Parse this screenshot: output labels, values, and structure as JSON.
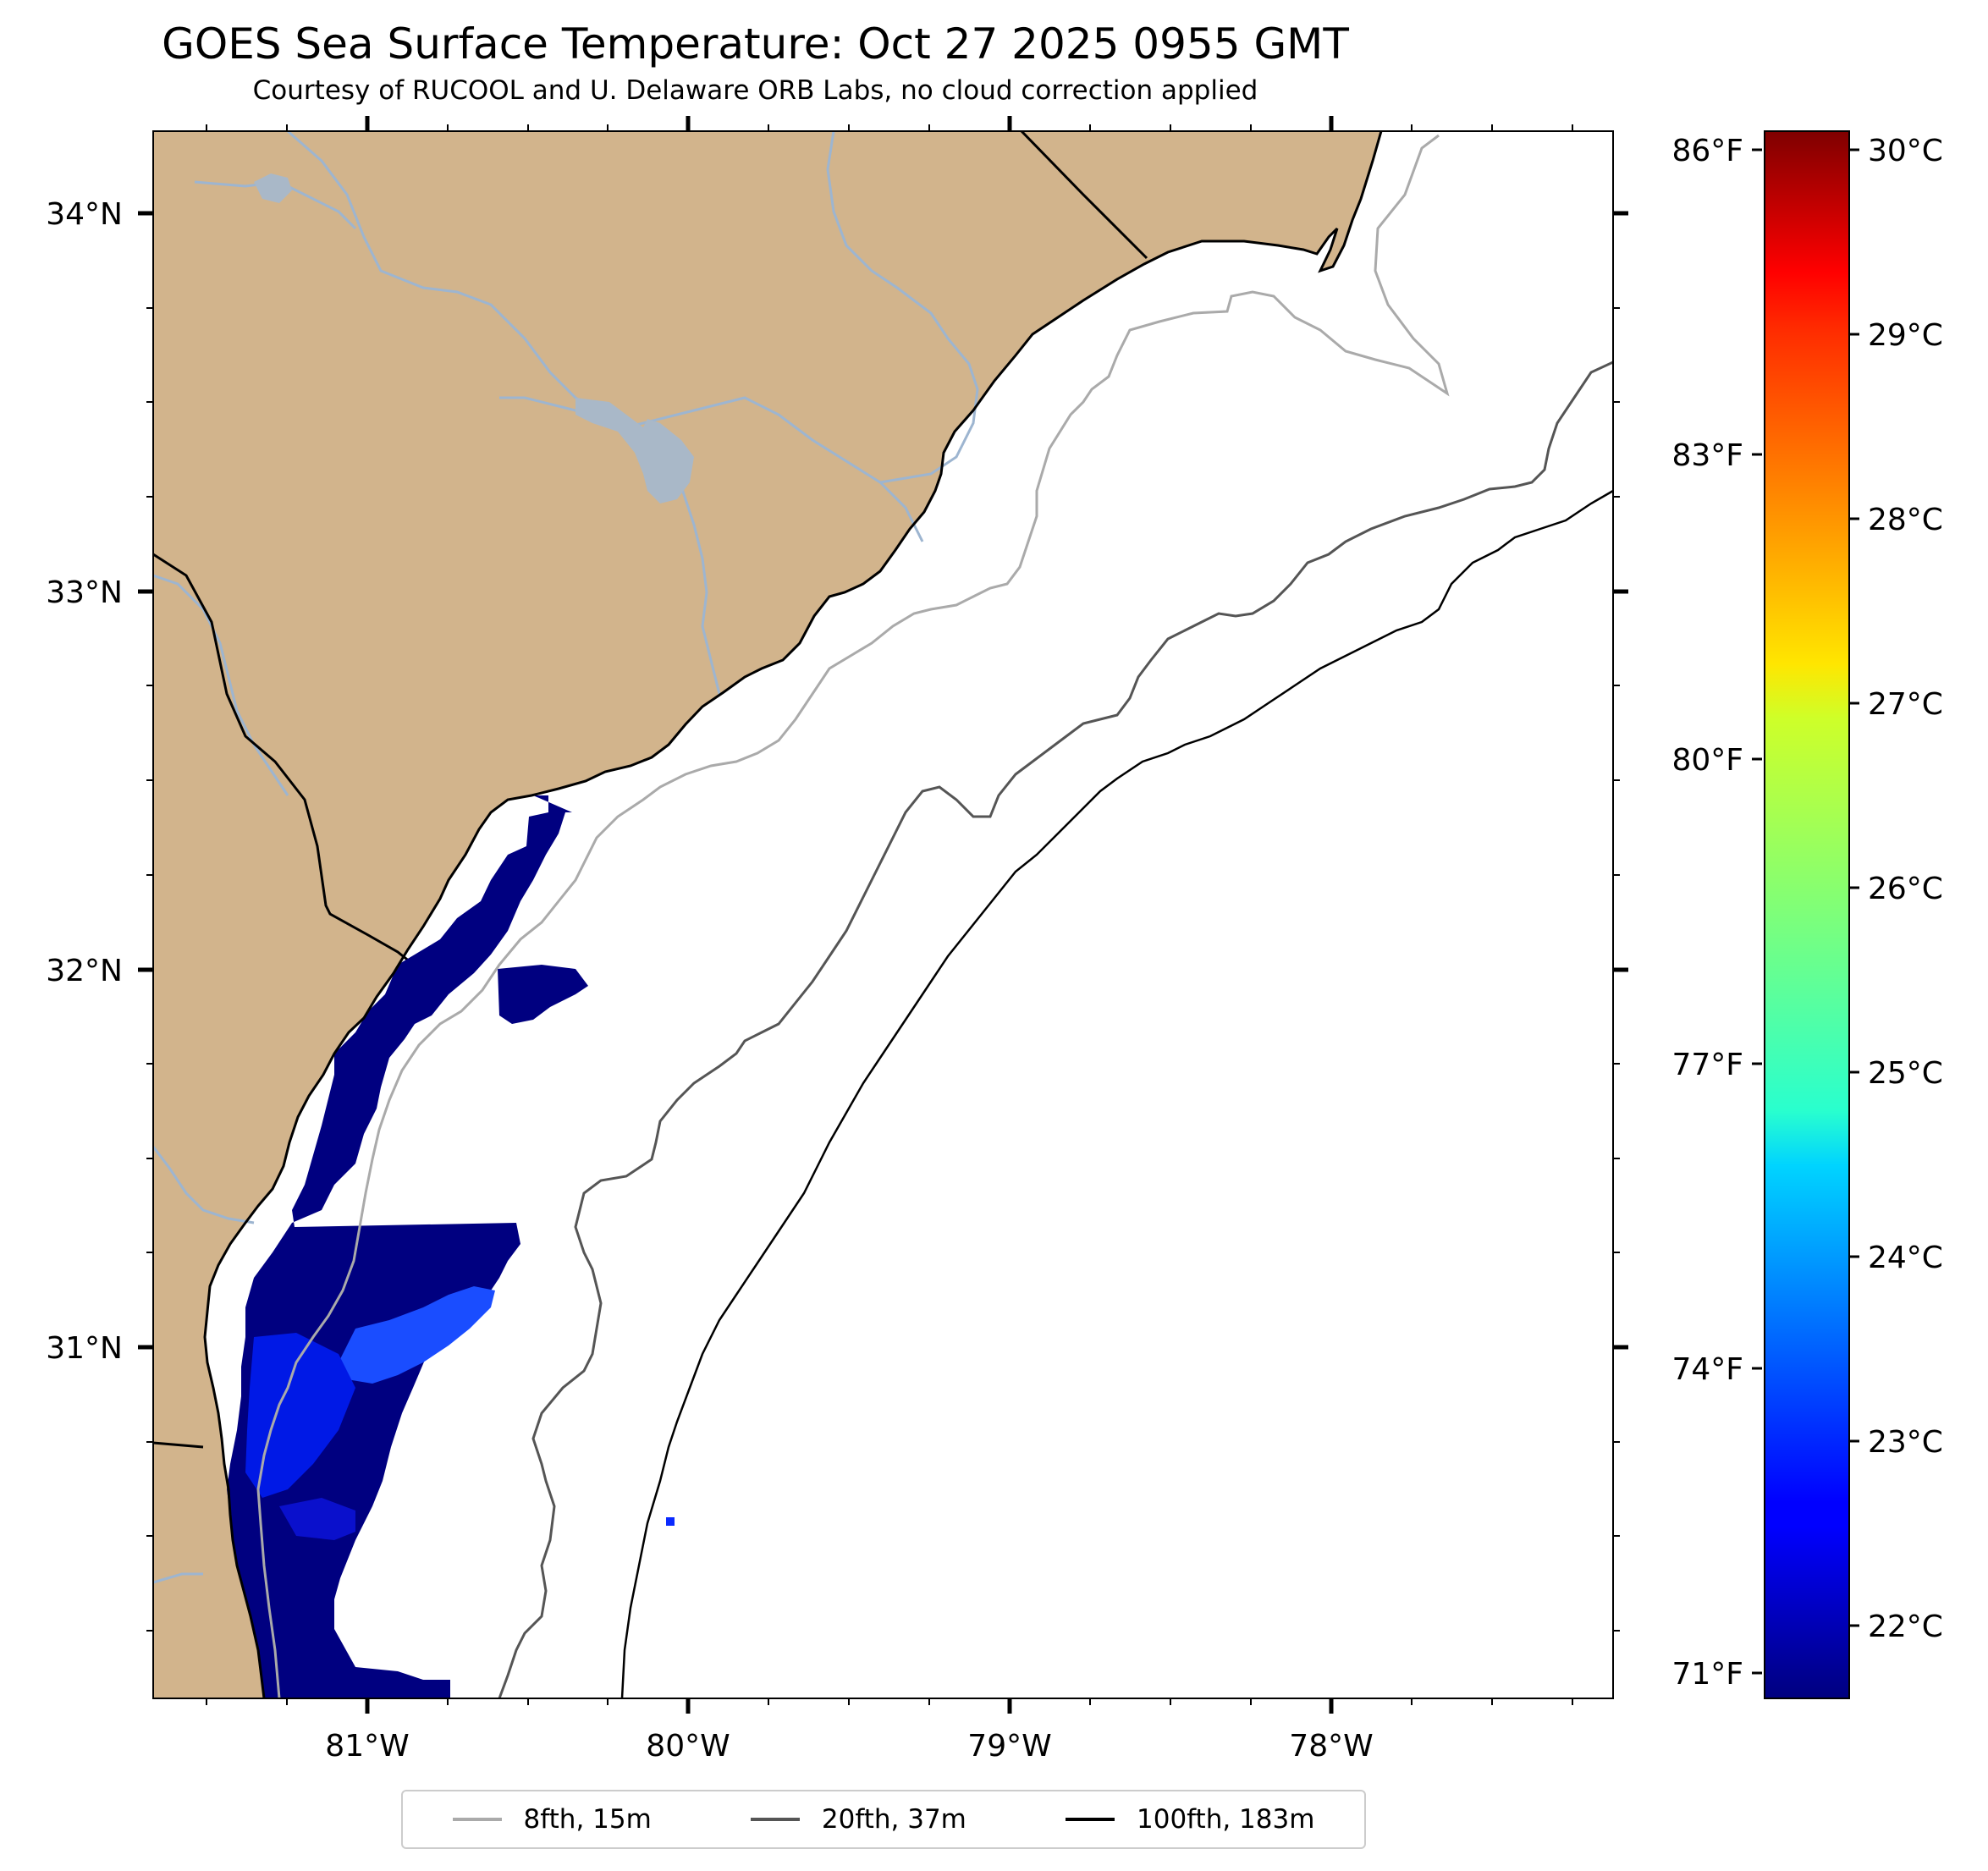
{
  "title": "GOES Sea Surface Temperature: Oct 27 2025 0955 GMT",
  "subtitle": "Courtesy of RUCOOL and U. Delaware ORB Labs, no cloud correction applied",
  "map": {
    "lon_ticks": [
      "81°W",
      "80°W",
      "79°W",
      "78°W"
    ],
    "lat_ticks": [
      "34°N",
      "33°N",
      "32°N",
      "31°N"
    ],
    "colors": {
      "land": "#d2b48c",
      "ocean": "#ffffff",
      "rivers": "#9db5d0",
      "border": "#000000"
    }
  },
  "fahrenheit_ticks": [
    "86°F",
    "83°F",
    "80°F",
    "77°F",
    "74°F",
    "71°F"
  ],
  "colorbar": {
    "ticks": [
      "30°C",
      "29°C",
      "28°C",
      "27°C",
      "26°C",
      "25°C",
      "24°C",
      "23°C",
      "22°C"
    ],
    "colormap": "jet",
    "range_c": [
      21.6,
      30.1
    ]
  },
  "legend": {
    "items": [
      {
        "label": "8fth, 15m",
        "color": "#aaaaaa"
      },
      {
        "label": "20fth, 37m",
        "color": "#555555"
      },
      {
        "label": "100fth, 183m",
        "color": "#000000"
      }
    ]
  }
}
